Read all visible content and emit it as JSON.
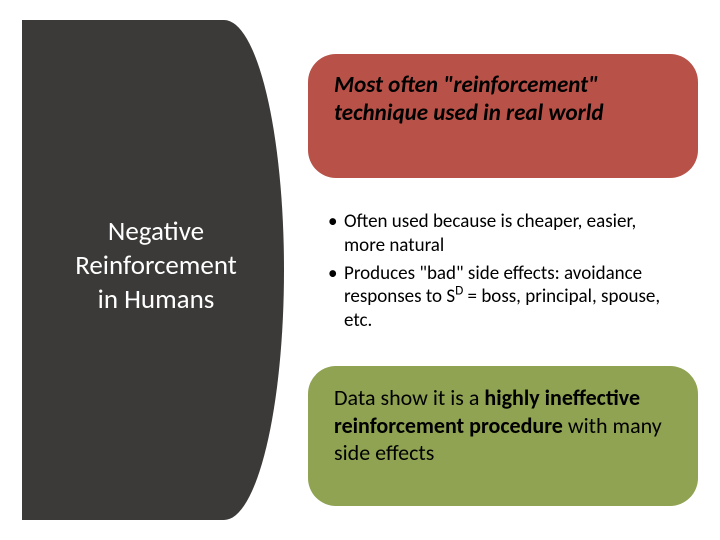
{
  "slide": {
    "background_color": "#ffffff",
    "left_panel": {
      "bg_color": "#3b3a39",
      "title_lines": [
        "Negative",
        "Reinforcement",
        "in Humans"
      ],
      "title_color": "#ffffff",
      "title_fontsize": 27
    },
    "boxes": {
      "red": {
        "bg_color": "#b85249",
        "border_radius": 28,
        "text": "Most often \"reinforcement\" technique used in real world",
        "font_style": "italic",
        "font_weight": "bold",
        "fontsize": 23
      },
      "white": {
        "bg_color": "#ffffff",
        "border_radius": 28,
        "bullets": [
          {
            "text": "Often used because is cheaper, easier, more natural"
          },
          {
            "pre": "Produces \"bad\" side effects: avoidance responses to S",
            "sup": "D",
            "post": " = boss, principal, spouse, etc."
          }
        ],
        "fontsize": 19
      },
      "green": {
        "bg_color": "#8fa352",
        "border_radius": 28,
        "segments": [
          {
            "t": "Data show it is a ",
            "bold": false
          },
          {
            "t": "highly ineffective reinforcement procedure",
            "bold": true
          },
          {
            "t": " with many side effects",
            "bold": false
          }
        ],
        "fontsize": 22
      }
    }
  }
}
